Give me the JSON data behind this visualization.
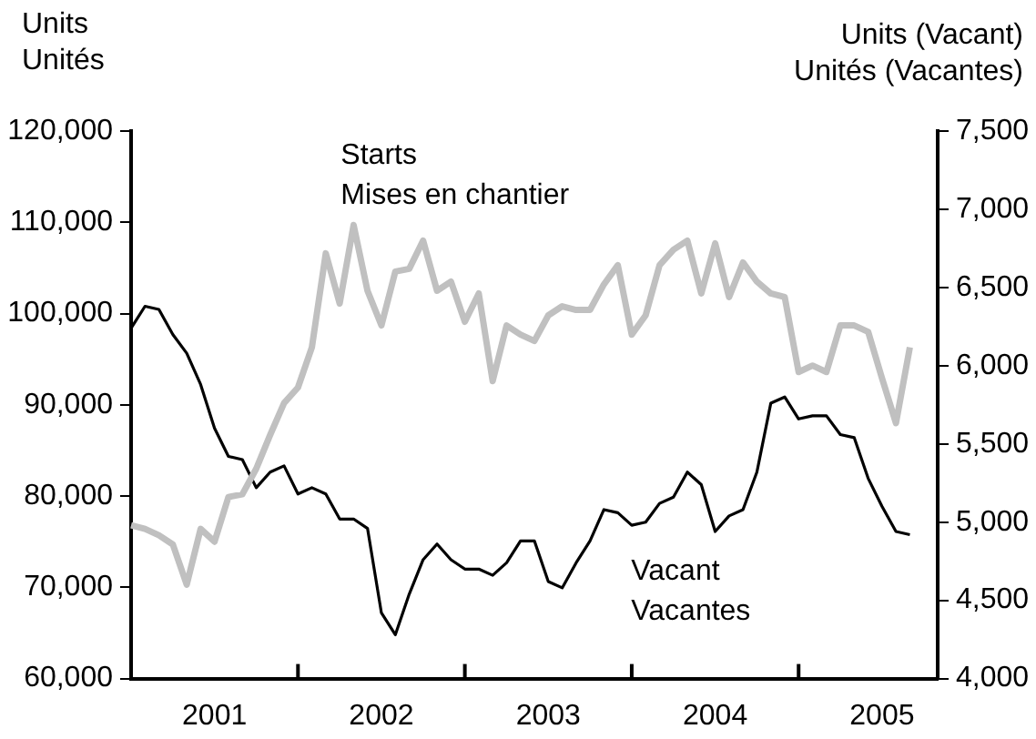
{
  "chart_data": {
    "type": "line",
    "ylabel": "Units\nUnités",
    "y2label": "Units (Vacant)\nUnités (Vacantes)",
    "categories": [
      null,
      null,
      null,
      null,
      null,
      null,
      "2001",
      null,
      null,
      null,
      null,
      null,
      null,
      null,
      null,
      null,
      null,
      null,
      "2002",
      null,
      null,
      null,
      null,
      null,
      null,
      null,
      null,
      null,
      null,
      null,
      "2003",
      null,
      null,
      null,
      null,
      null,
      null,
      null,
      null,
      null,
      null,
      null,
      "2004",
      null,
      null,
      null,
      null,
      null,
      null,
      null,
      null,
      null,
      null,
      null,
      "2005",
      null,
      null,
      null,
      null
    ],
    "series": [
      {
        "name": "Starts\nMises en chantier",
        "color": "#c0c0c0",
        "values": [
          76800,
          76400,
          75700,
          74700,
          70300,
          76400,
          75000,
          79900,
          80200,
          83000,
          86700,
          90200,
          91900,
          96300,
          106600,
          101100,
          109700,
          102500,
          98700,
          104600,
          104900,
          108000,
          102500,
          103500,
          99100,
          102200,
          92600,
          98700,
          97700,
          97000,
          99800,
          100800,
          100400,
          100400,
          103200,
          105300,
          97700,
          99800,
          105300,
          107000,
          108000,
          102200,
          107700,
          101800,
          105600,
          103500,
          102200,
          101800,
          93600,
          94300,
          93600,
          98700,
          98700,
          98000,
          92900,
          88000,
          96300,
          null,
          null
        ]
      },
      {
        "name": "Vacant\nVacantes",
        "color": "#000000",
        "axis": "y2",
        "values": [
          6240,
          6380,
          6360,
          6200,
          6080,
          5880,
          5600,
          5420,
          5400,
          5220,
          5320,
          5360,
          5180,
          5220,
          5180,
          5020,
          5020,
          4960,
          4420,
          4280,
          4540,
          4760,
          4860,
          4760,
          4700,
          4700,
          4660,
          4740,
          4880,
          4880,
          4620,
          4580,
          4740,
          4880,
          5080,
          5060,
          4980,
          5000,
          5120,
          5160,
          5320,
          5240,
          4940,
          5040,
          5080,
          5320,
          5760,
          5800,
          5660,
          5680,
          5680,
          5560,
          5540,
          5280,
          5100,
          4940,
          4920,
          null,
          null
        ]
      }
    ],
    "ylim": [
      60000,
      120000
    ],
    "yticks": [
      {
        "value": 60000,
        "label": "60,000"
      },
      {
        "value": 70000,
        "label": "70,000"
      },
      {
        "value": 80000,
        "label": "80,000"
      },
      {
        "value": 90000,
        "label": "90,000"
      },
      {
        "value": 100000,
        "label": "100,000"
      },
      {
        "value": 110000,
        "label": "110,000"
      },
      {
        "value": 120000,
        "label": "120,000"
      }
    ],
    "y2lim": [
      4000,
      7500
    ],
    "y2ticks": [
      {
        "value": 4000,
        "label": "4,000"
      },
      {
        "value": 4500,
        "label": "4,500"
      },
      {
        "value": 5000,
        "label": "5,000"
      },
      {
        "value": 5500,
        "label": "5,500"
      },
      {
        "value": 6000,
        "label": "6,000"
      },
      {
        "value": 6500,
        "label": "6,500"
      },
      {
        "value": 7000,
        "label": "7,000"
      },
      {
        "value": 7500,
        "label": "7,500"
      }
    ],
    "grid": false,
    "legend": false,
    "marker": "none",
    "line_style": "solid"
  }
}
